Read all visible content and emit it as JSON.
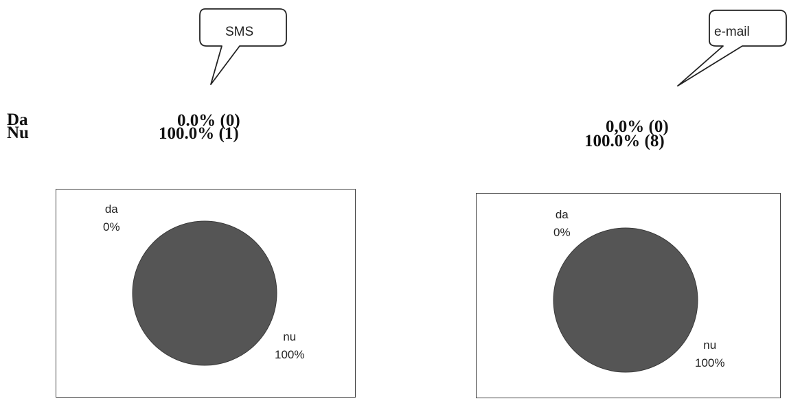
{
  "legend": {
    "da_label": "Da",
    "nu_label": "Nu"
  },
  "charts": [
    {
      "callout": "SMS",
      "da_value": "0.0% (0)",
      "nu_value": "100.0% (1)"
    },
    {
      "callout": "e-mail",
      "da_value": "0,0% (0)",
      "nu_value": "100.0% (8)"
    }
  ],
  "chart_data": [
    {
      "type": "pie",
      "title": "SMS",
      "categories": [
        "da",
        "nu"
      ],
      "values": [
        0,
        100
      ],
      "data_labels": [
        {
          "category": "da",
          "percent": "0%"
        },
        {
          "category": "nu",
          "percent": "100%"
        }
      ],
      "counts": {
        "da": 0,
        "nu": 1
      },
      "colors": [
        "#ffffff",
        "#555555"
      ]
    },
    {
      "type": "pie",
      "title": "e-mail",
      "categories": [
        "da",
        "nu"
      ],
      "values": [
        0,
        100
      ],
      "data_labels": [
        {
          "category": "da",
          "percent": "0%"
        },
        {
          "category": "nu",
          "percent": "100%"
        }
      ],
      "counts": {
        "da": 0,
        "nu": 8
      },
      "colors": [
        "#ffffff",
        "#555555"
      ]
    }
  ]
}
